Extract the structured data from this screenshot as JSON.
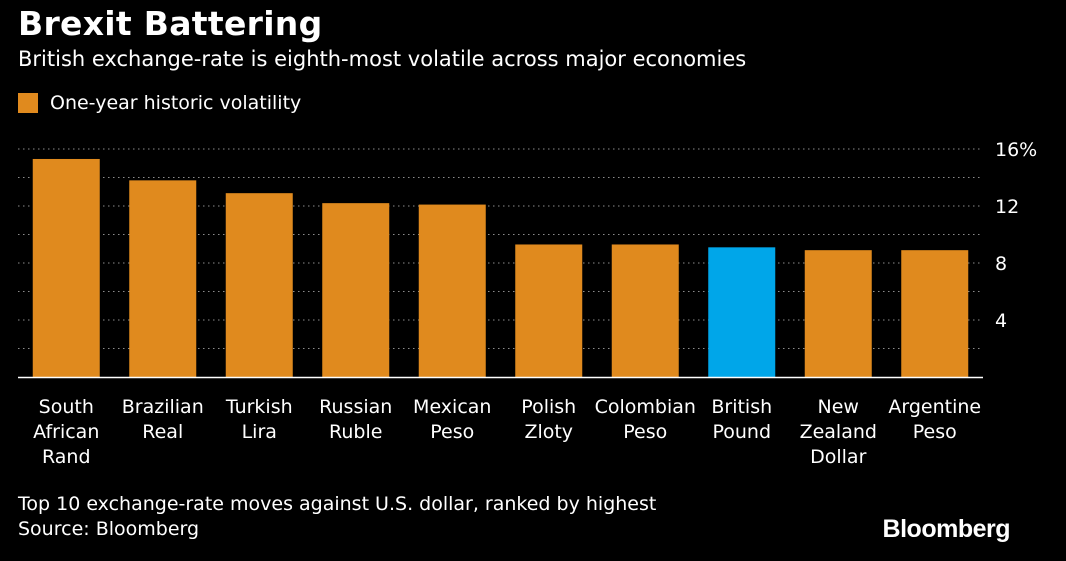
{
  "title": "Brexit Battering",
  "subtitle": "British exchange-rate is eighth-most volatile across major economies",
  "legend": {
    "label": "One-year historic volatility",
    "color": "#E08A1E"
  },
  "footer": {
    "note": "Top 10 exchange-rate moves against U.S. dollar, ranked by highest",
    "source": "Source: Bloomberg"
  },
  "brand": "Bloomberg",
  "colors": {
    "default": "#E08A1E",
    "highlight": "#00A6E9",
    "grid": "#8c8c8c"
  },
  "chart_data": {
    "type": "bar",
    "title": "Brexit Battering",
    "subtitle": "British exchange-rate is eighth-most volatile across major economies",
    "xlabel": "",
    "ylabel": "One-year historic volatility",
    "ylim": [
      0,
      16
    ],
    "yticks": [
      4,
      8,
      12,
      16
    ],
    "ytick_labels": [
      "4",
      "8",
      "12",
      "16%"
    ],
    "categories": [
      [
        "South",
        "African",
        "Rand"
      ],
      [
        "Brazilian",
        "Real"
      ],
      [
        "Turkish",
        "Lira"
      ],
      [
        "Russian",
        "Ruble"
      ],
      [
        "Mexican",
        "Peso"
      ],
      [
        "Polish",
        "Zloty"
      ],
      [
        "Colombian",
        "Peso"
      ],
      [
        "British",
        "Pound"
      ],
      [
        "New",
        "Zealand",
        "Dollar"
      ],
      [
        "Argentine",
        "Peso"
      ]
    ],
    "values": [
      15.3,
      13.8,
      12.9,
      12.2,
      12.1,
      9.3,
      9.3,
      9.1,
      8.9,
      8.9
    ],
    "highlight": "British Pound"
  }
}
